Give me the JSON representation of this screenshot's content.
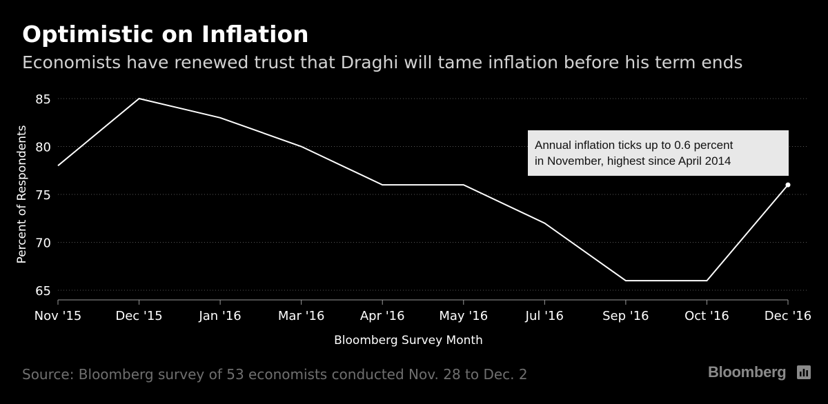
{
  "title": "Optimistic on Inflation",
  "subtitle": "Economists have renewed trust that Draghi will tame inflation before his term ends",
  "source": "Source: Bloomberg survey of 53 economists conducted Nov. 28 to Dec. 2",
  "brand": "Bloomberg",
  "colors": {
    "background": "#000000",
    "line": "#ffffff",
    "grid": "#5a5a5a",
    "annotation_box": "#e8e8e8",
    "muted_text": "#6f6f6f"
  },
  "chart_data": {
    "type": "line",
    "title": "Optimistic on Inflation",
    "subtitle": "Economists have renewed trust that Draghi will tame inflation before his term ends",
    "xlabel": "Bloomberg Survey Month",
    "ylabel": "Percent of Respondents",
    "categories": [
      "Nov '15",
      "Dec '15",
      "Jan '16",
      "Mar '16",
      "Apr '16",
      "May '16",
      "Jul '16",
      "Sep '16",
      "Oct '16",
      "Dec '16"
    ],
    "values": [
      78,
      85,
      83,
      80,
      76,
      76,
      72,
      66,
      66,
      76
    ],
    "ylim": [
      65,
      85
    ],
    "yticks": [
      65,
      70,
      75,
      80,
      85
    ],
    "grid": true,
    "legend": "none",
    "annotation": {
      "category": "Dec '16",
      "lines": [
        "Annual inflation ticks up to 0.6 percent",
        "in November, highest since April 2014"
      ]
    }
  }
}
